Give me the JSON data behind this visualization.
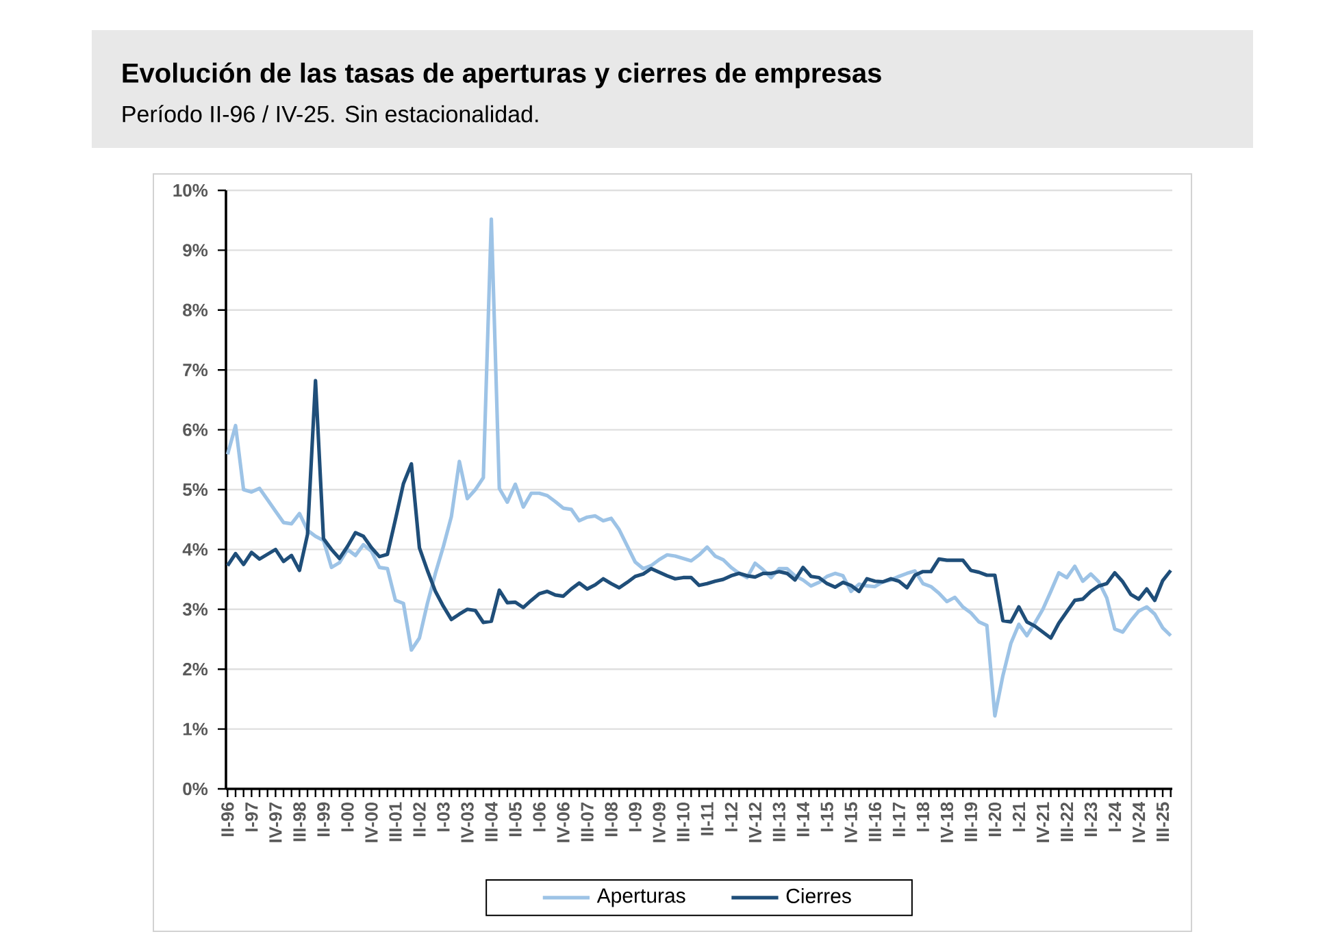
{
  "chart_data": {
    "type": "line",
    "title": "Evolución de las tasas de aperturas y cierres de empresas",
    "subtitle": "Período II-96 / IV-25. Sin estacionalidad.",
    "categories": [
      "II-96",
      null,
      null,
      "I-97",
      null,
      null,
      "IV-97",
      null,
      null,
      "III-98",
      null,
      null,
      "II-99",
      null,
      null,
      "I-00",
      null,
      null,
      "IV-00",
      null,
      null,
      "III-01",
      null,
      null,
      "II-02",
      null,
      null,
      "I-03",
      null,
      null,
      "IV-03",
      null,
      null,
      "III-04",
      null,
      null,
      "II-05",
      null,
      null,
      "I-06",
      null,
      null,
      "IV-06",
      null,
      null,
      "III-07",
      null,
      null,
      "II-08",
      null,
      null,
      "I-09",
      null,
      null,
      "IV-09",
      null,
      null,
      "III-10",
      null,
      null,
      "II-11",
      null,
      null,
      "I-12",
      null,
      null,
      "IV-12",
      null,
      null,
      "III-13",
      null,
      null,
      "II-14",
      null,
      null,
      "I-15",
      null,
      null,
      "IV-15",
      null,
      null,
      "III-16",
      null,
      null,
      "II-17",
      null,
      null,
      "I-18",
      null,
      null,
      "IV-18",
      null,
      null,
      "III-19",
      null,
      null,
      "II-20",
      null,
      null,
      "I-21",
      null,
      null,
      "IV-21",
      null,
      null,
      "III-22",
      null,
      null,
      "II-23",
      null,
      null,
      "I-24",
      null,
      null,
      "IV-24",
      null,
      null,
      "III-25",
      null
    ],
    "series": [
      {
        "name": "Aperturas",
        "color": "#9dc3e6",
        "values": [
          5.59,
          6.07,
          5.0,
          4.96,
          5.02,
          4.83,
          4.64,
          4.45,
          4.43,
          4.6,
          4.32,
          4.22,
          4.15,
          3.7,
          3.78,
          4.0,
          3.9,
          4.08,
          3.97,
          3.7,
          3.68,
          3.15,
          3.1,
          2.32,
          2.52,
          3.1,
          3.6,
          4.05,
          4.55,
          5.47,
          4.85,
          5.0,
          5.2,
          9.52,
          5.02,
          4.79,
          5.09,
          4.71,
          4.94,
          4.94,
          4.9,
          4.8,
          4.69,
          4.67,
          4.48,
          4.54,
          4.56,
          4.48,
          4.52,
          4.33,
          4.06,
          3.79,
          3.68,
          3.73,
          3.83,
          3.91,
          3.89,
          3.85,
          3.81,
          3.91,
          4.04,
          3.89,
          3.83,
          3.7,
          3.6,
          3.53,
          3.77,
          3.66,
          3.53,
          3.68,
          3.68,
          3.56,
          3.49,
          3.39,
          3.45,
          3.55,
          3.6,
          3.56,
          3.3,
          3.42,
          3.39,
          3.38,
          3.46,
          3.49,
          3.55,
          3.6,
          3.64,
          3.43,
          3.38,
          3.27,
          3.13,
          3.2,
          3.04,
          2.94,
          2.79,
          2.73,
          1.22,
          1.89,
          2.43,
          2.75,
          2.56,
          2.77,
          3.0,
          3.3,
          3.61,
          3.53,
          3.72,
          3.47,
          3.59,
          3.46,
          3.19,
          2.67,
          2.62,
          2.81,
          2.97,
          3.04,
          2.92,
          2.69,
          2.56
        ]
      },
      {
        "name": "Cierres",
        "color": "#1f4e79",
        "values": [
          3.73,
          3.93,
          3.75,
          3.95,
          3.84,
          3.92,
          4.0,
          3.8,
          3.9,
          3.65,
          4.25,
          6.82,
          4.18,
          4.0,
          3.85,
          4.05,
          4.28,
          4.22,
          4.03,
          3.88,
          3.92,
          4.5,
          5.1,
          5.43,
          4.03,
          3.65,
          3.3,
          3.05,
          2.83,
          2.92,
          3.0,
          2.98,
          2.78,
          2.8,
          3.32,
          3.11,
          3.12,
          3.03,
          3.15,
          3.26,
          3.3,
          3.24,
          3.22,
          3.34,
          3.44,
          3.34,
          3.41,
          3.51,
          3.43,
          3.36,
          3.45,
          3.55,
          3.59,
          3.68,
          3.62,
          3.56,
          3.51,
          3.53,
          3.53,
          3.4,
          3.43,
          3.47,
          3.5,
          3.56,
          3.6,
          3.56,
          3.54,
          3.6,
          3.6,
          3.63,
          3.6,
          3.49,
          3.7,
          3.55,
          3.53,
          3.43,
          3.37,
          3.45,
          3.4,
          3.3,
          3.51,
          3.47,
          3.46,
          3.51,
          3.47,
          3.36,
          3.57,
          3.63,
          3.63,
          3.84,
          3.82,
          3.82,
          3.82,
          3.65,
          3.62,
          3.57,
          3.57,
          2.81,
          2.79,
          3.04,
          2.79,
          2.72,
          2.62,
          2.52,
          2.77,
          2.96,
          3.15,
          3.17,
          3.3,
          3.39,
          3.43,
          3.61,
          3.46,
          3.25,
          3.17,
          3.34,
          3.15,
          3.48,
          3.65
        ]
      }
    ],
    "ylim": [
      0,
      10
    ],
    "yticks": [
      {
        "value": 0,
        "label": "0%"
      },
      {
        "value": 1,
        "label": "1%"
      },
      {
        "value": 2,
        "label": "2%"
      },
      {
        "value": 3,
        "label": "3%"
      },
      {
        "value": 4,
        "label": "4%"
      },
      {
        "value": 5,
        "label": "5%"
      },
      {
        "value": 6,
        "label": "6%"
      },
      {
        "value": 7,
        "label": "7%"
      },
      {
        "value": 8,
        "label": "8%"
      },
      {
        "value": 9,
        "label": "9%"
      },
      {
        "value": 10,
        "label": "10%"
      }
    ],
    "grid": "y",
    "legend": "bottom",
    "marker": "none",
    "line_style": "solid"
  }
}
